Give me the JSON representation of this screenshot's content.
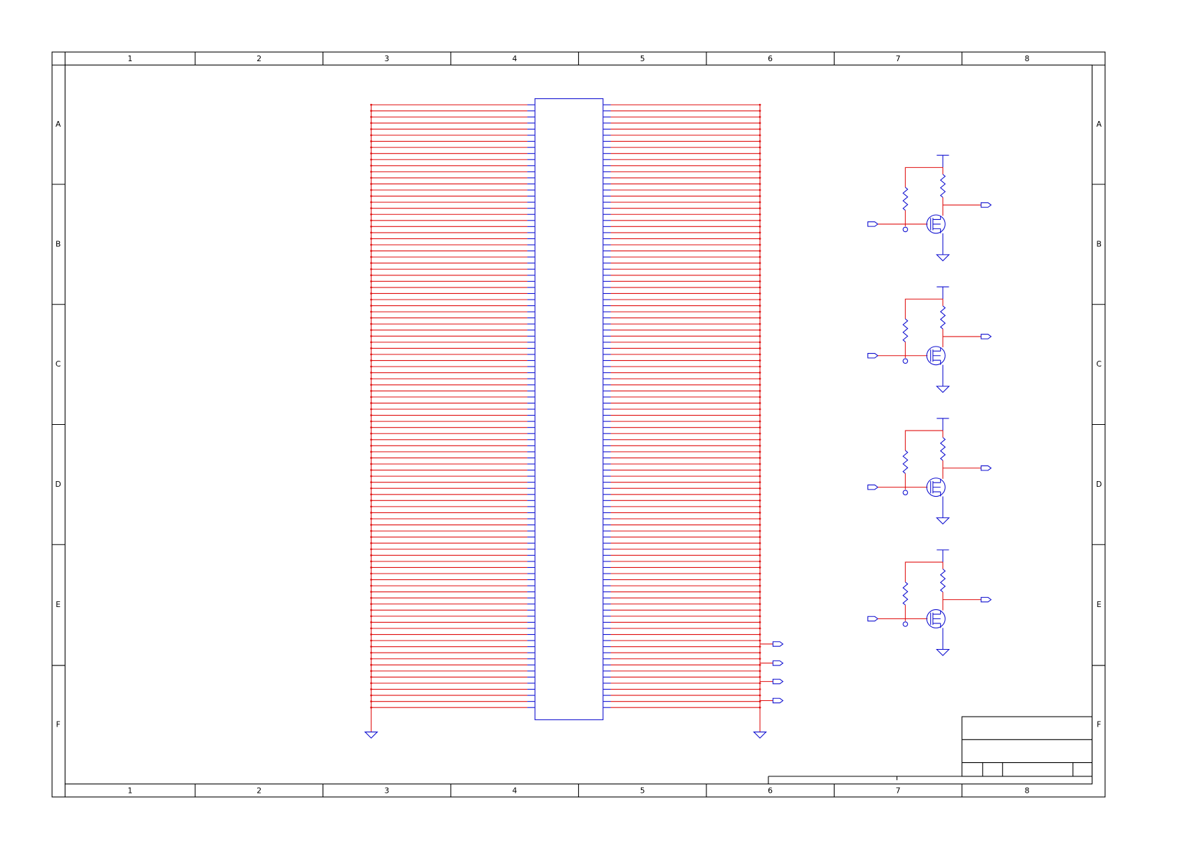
{
  "frame": {
    "columns": [
      "1",
      "2",
      "3",
      "4",
      "5",
      "6",
      "7",
      "8"
    ],
    "rows": [
      "A",
      "B",
      "C",
      "D",
      "E",
      "F"
    ]
  }
}
